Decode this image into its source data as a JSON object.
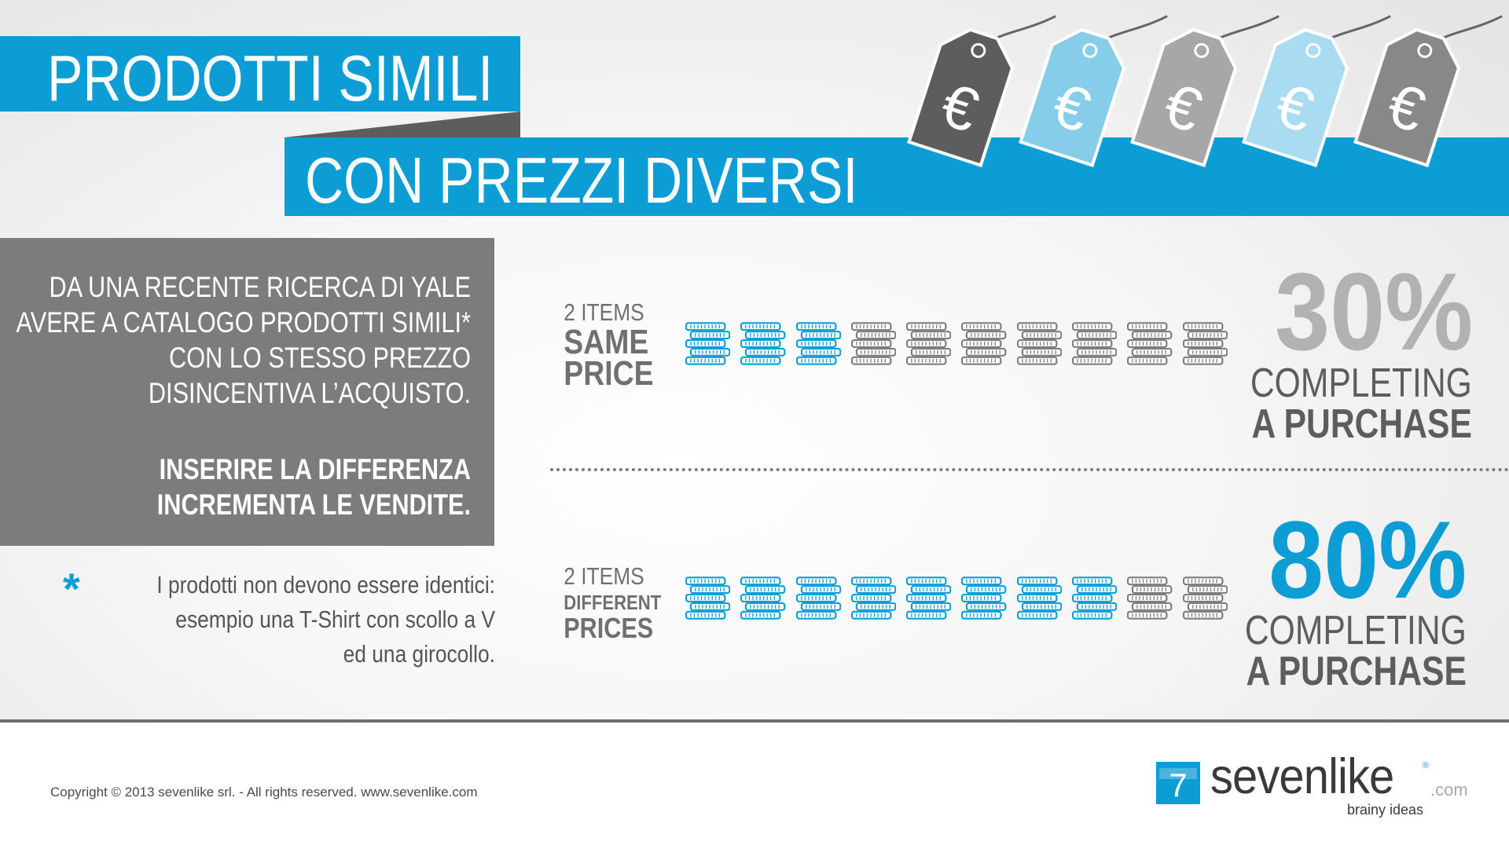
{
  "title": {
    "line1": "PRODOTTI SIMILI",
    "line2": "CON PREZZI DIVERSI"
  },
  "price_tags": [
    {
      "symbol": "€",
      "color": "#5d5d5d"
    },
    {
      "symbol": "€",
      "color": "#86cdea"
    },
    {
      "symbol": "€",
      "color": "#a7a7a7"
    },
    {
      "symbol": "€",
      "color": "#a9dcf1"
    },
    {
      "symbol": "€",
      "color": "#888888"
    }
  ],
  "info_box": {
    "lines": [
      "DA UNA RECENTE RICERCA DI YALE",
      "AVERE A CATALOGO PRODOTTI SIMILI*",
      "CON LO STESSO PREZZO",
      "DISINCENTIVA L’ACQUISTO."
    ],
    "bold_lines": [
      "INSERIRE LA DIFFERENZA",
      "INCREMENTA LE VENDITE."
    ]
  },
  "footnote": {
    "symbol": "*",
    "lines": [
      "I prodotti non devono essere identici:",
      "esempio una T-Shirt con scollo a V",
      "ed una girocollo."
    ]
  },
  "rows": [
    {
      "label_small": "2 ITEMS",
      "label_big": [
        "SAME",
        "PRICE"
      ],
      "stacks_total": 10,
      "stacks_highlighted": 3,
      "percent": "30%",
      "caption": [
        "COMPLETING",
        "A PURCHASE"
      ]
    },
    {
      "label_small": "2 ITEMS",
      "label_big": [
        "DIFFERENT",
        "PRICES"
      ],
      "stacks_total": 10,
      "stacks_highlighted": 8,
      "percent": "80%",
      "caption": [
        "COMPLETING",
        "A PURCHASE"
      ]
    }
  ],
  "colors": {
    "accent": "#0c9dd5",
    "box_gray": "#7c7c7c",
    "coin_gray": "#7d7d7d",
    "percent_gray": "#b2b2b2"
  },
  "footer": {
    "copyright": "Copyright © 2013 sevenlike srl. - All rights reserved. www.sevenlike.com",
    "logo_number": "7",
    "logo_word": "sevenlike",
    "logo_reg": "®",
    "logo_domain": ".com",
    "logo_tagline": "brainy ideas"
  }
}
